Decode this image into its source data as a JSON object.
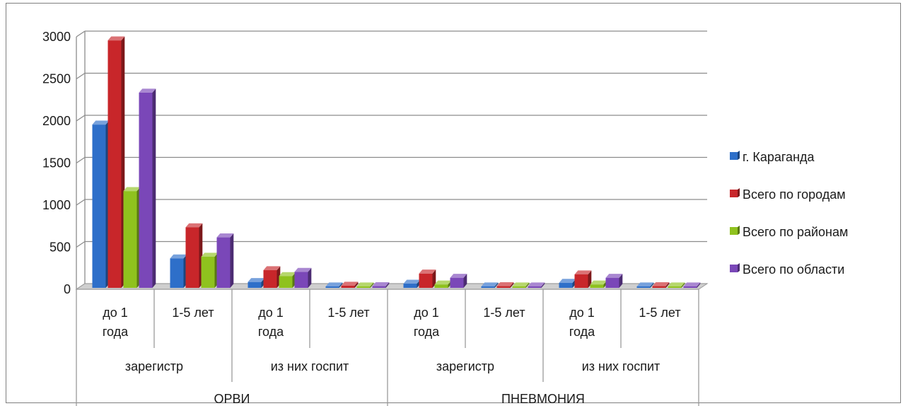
{
  "chart_data": {
    "type": "bar",
    "subtype": "3d-clustered-column",
    "ylim": [
      0,
      3000
    ],
    "y_ticks": [
      "0",
      "500",
      "1000",
      "1500",
      "2000",
      "2500",
      "3000"
    ],
    "grid": true,
    "legend_position": "right",
    "categories": [
      [
        "ОРВИ",
        "зарегистр",
        "до 1 года"
      ],
      [
        "ОРВИ",
        "зарегистр",
        "1-5 лет"
      ],
      [
        "ОРВИ",
        "из них госпит",
        "до 1 года"
      ],
      [
        "ОРВИ",
        "из них госпит",
        "1-5 лет"
      ],
      [
        "ПНЕВМОНИЯ",
        "зарегистр",
        "до 1 года"
      ],
      [
        "ПНЕВМОНИЯ",
        "зарегистр",
        "1-5 лет"
      ],
      [
        "ПНЕВМОНИЯ",
        "из них госпит",
        "до 1 года"
      ],
      [
        "ПНЕВМОНИЯ",
        "из них госпит",
        "1-5 лет"
      ]
    ],
    "level1_labels": [
      [
        "до 1",
        "года"
      ],
      [
        "1-5 лет"
      ],
      [
        "до 1",
        "года"
      ],
      [
        "1-5 лет"
      ],
      [
        "до 1",
        "года"
      ],
      [
        "1-5 лет"
      ],
      [
        "до 1",
        "года"
      ],
      [
        "1-5 лет"
      ]
    ],
    "level2_labels": [
      "зарегистр",
      "из них госпит",
      "зарегистр",
      "из них госпит"
    ],
    "level3_labels": [
      "ОРВИ",
      "ПНЕВМОНИЯ"
    ],
    "series": [
      {
        "name": "г. Караганда",
        "color": "#2e6fc9",
        "values": [
          1940,
          350,
          70,
          5,
          50,
          5,
          60,
          5
        ]
      },
      {
        "name": "Всего по городам",
        "color": "#c8262a",
        "values": [
          2940,
          720,
          210,
          25,
          170,
          20,
          160,
          20
        ]
      },
      {
        "name": "Всего по районам",
        "color": "#8fc21e",
        "values": [
          1150,
          370,
          140,
          15,
          40,
          10,
          40,
          10
        ]
      },
      {
        "name": "Всего по области",
        "color": "#7a47b8",
        "values": [
          2320,
          600,
          190,
          20,
          120,
          15,
          120,
          15
        ]
      }
    ]
  }
}
